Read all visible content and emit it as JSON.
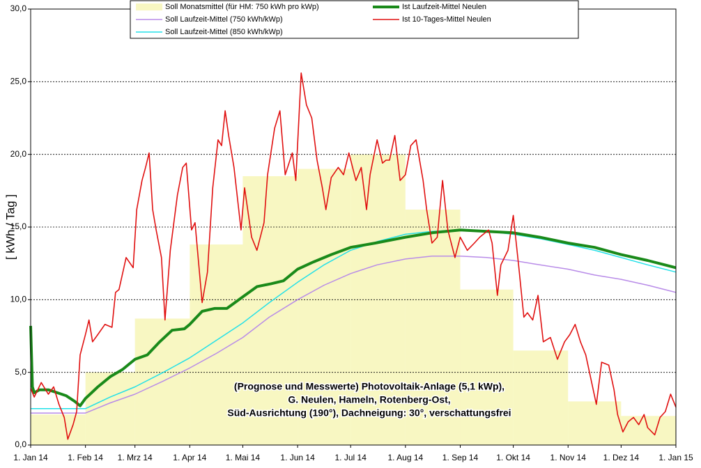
{
  "chart_data": {
    "type": "line",
    "y_label": "[ kWh / Tag ]",
    "annotations": [
      "(Prognose und Messwerte)  Photovoltaik-Anlage (5,1 kWp),",
      "G. Neulen, Hameln, Rotenberg-Ost,",
      "Süd-Ausrichtung (190°), Dachneigung: 30°, verschattungsfrei"
    ],
    "xlim": [
      0,
      365
    ],
    "xticks": [
      {
        "value": 0,
        "label": "1. Jan 14"
      },
      {
        "value": 31,
        "label": "1. Feb 14"
      },
      {
        "value": 59,
        "label": "1. Mrz 14"
      },
      {
        "value": 90,
        "label": "1. Apr 14"
      },
      {
        "value": 120,
        "label": "1. Mai 14"
      },
      {
        "value": 151,
        "label": "1. Jun 14"
      },
      {
        "value": 181,
        "label": "1. Jul 14"
      },
      {
        "value": 212,
        "label": "1. Aug 14"
      },
      {
        "value": 243,
        "label": "1. Sep 14"
      },
      {
        "value": 273,
        "label": "1. Okt 14"
      },
      {
        "value": 304,
        "label": "1. Nov 14"
      },
      {
        "value": 334,
        "label": "1. Dez 14"
      },
      {
        "value": 365,
        "label": "1. Jan 15"
      }
    ],
    "ylim": [
      0,
      30
    ],
    "yticks": [
      {
        "value": 0,
        "label": "0,0"
      },
      {
        "value": 5,
        "label": "5,0"
      },
      {
        "value": 10,
        "label": "10,0"
      },
      {
        "value": 15,
        "label": "15,0"
      },
      {
        "value": 20,
        "label": "20,0"
      },
      {
        "value": 25,
        "label": "25,0"
      },
      {
        "value": 30,
        "label": "30,0"
      }
    ],
    "grid": true,
    "series": [
      {
        "name": "Soll Monatsmittel (für HM: 750 kWh pro kWp)",
        "type": "bar",
        "color": "#f4f29a",
        "bins": [
          0,
          31,
          59,
          90,
          120,
          151,
          181,
          212,
          243,
          273,
          304,
          334,
          365
        ],
        "values": [
          2.1,
          5.0,
          8.7,
          13.8,
          18.5,
          19.0,
          20.0,
          16.2,
          10.7,
          6.5,
          3.0,
          2.0
        ]
      },
      {
        "name": "Soll Laufzeit-Mittel (750 kWh/kWp)",
        "color": "#b88be8",
        "x": [
          0,
          31,
          45,
          59,
          75,
          90,
          105,
          120,
          135,
          151,
          166,
          181,
          196,
          212,
          227,
          243,
          258,
          273,
          288,
          304,
          319,
          334,
          349,
          365
        ],
        "values": [
          2.2,
          2.2,
          2.9,
          3.5,
          4.4,
          5.3,
          6.3,
          7.4,
          8.8,
          10.0,
          11.0,
          11.8,
          12.4,
          12.8,
          13.0,
          13.0,
          12.9,
          12.7,
          12.4,
          12.1,
          11.7,
          11.4,
          11.0,
          10.5
        ]
      },
      {
        "name": "Soll Laufzeit-Mittel (850 kWh/kWp)",
        "color": "#22e0e8",
        "x": [
          0,
          31,
          45,
          59,
          75,
          90,
          105,
          120,
          135,
          151,
          166,
          181,
          196,
          212,
          227,
          243,
          258,
          273,
          288,
          304,
          319,
          334,
          349,
          365
        ],
        "values": [
          2.5,
          2.5,
          3.3,
          4.0,
          5.0,
          6.0,
          7.2,
          8.4,
          9.8,
          11.2,
          12.4,
          13.4,
          14.0,
          14.5,
          14.7,
          14.8,
          14.7,
          14.5,
          14.2,
          13.8,
          13.4,
          12.9,
          12.4,
          11.9
        ]
      },
      {
        "name": "Ist Laufzeit-Mittel Neulen",
        "color": "#1a8a1a",
        "x": [
          0,
          1,
          2,
          5,
          10,
          15,
          20,
          25,
          28,
          31,
          38,
          45,
          52,
          59,
          66,
          73,
          80,
          87,
          90,
          97,
          104,
          111,
          120,
          128,
          136,
          143,
          151,
          160,
          170,
          181,
          195,
          212,
          227,
          243,
          258,
          273,
          288,
          304,
          319,
          334,
          349,
          365
        ],
        "values": [
          8.2,
          4.0,
          3.6,
          3.8,
          3.8,
          3.6,
          3.4,
          3.0,
          2.7,
          3.2,
          4.0,
          4.7,
          5.2,
          5.9,
          6.2,
          7.1,
          7.9,
          8.0,
          8.3,
          9.2,
          9.4,
          9.4,
          10.2,
          10.9,
          11.1,
          11.3,
          12.1,
          12.6,
          13.1,
          13.6,
          13.9,
          14.3,
          14.6,
          14.8,
          14.7,
          14.6,
          14.3,
          13.9,
          13.6,
          13.1,
          12.7,
          12.2
        ]
      },
      {
        "name": "Ist 10-Tages-Mittel Neulen",
        "color": "#e01010",
        "x": [
          0,
          2,
          6,
          10,
          13,
          16,
          19,
          21,
          24,
          26,
          28,
          31,
          33,
          35,
          38,
          42,
          46,
          48,
          50,
          54,
          58,
          60,
          63,
          65,
          67,
          69,
          71,
          74,
          76,
          79,
          83,
          86,
          88,
          91,
          93,
          97,
          100,
          103,
          106,
          108,
          110,
          112,
          115,
          119,
          121,
          125,
          128,
          132,
          134,
          138,
          141,
          144,
          148,
          150,
          153,
          156,
          159,
          162,
          165,
          167,
          170,
          174,
          177,
          180,
          184,
          187,
          190,
          192,
          196,
          199,
          201,
          203,
          206,
          209,
          212,
          215,
          218,
          222,
          224,
          227,
          230,
          233,
          236,
          240,
          243,
          247,
          251,
          254,
          259,
          261,
          264,
          266,
          270,
          273,
          276,
          279,
          281,
          284,
          287,
          290,
          294,
          298,
          302,
          305,
          308,
          311,
          314,
          317,
          320,
          323,
          327,
          330,
          332,
          335,
          338,
          341,
          344,
          347,
          349,
          353,
          356,
          359,
          362,
          365
        ],
        "values": [
          3.9,
          3.3,
          4.3,
          3.5,
          4.0,
          2.8,
          1.9,
          0.4,
          1.4,
          2.3,
          6.2,
          7.6,
          8.6,
          7.1,
          7.6,
          8.3,
          8.1,
          10.5,
          10.7,
          12.9,
          12.2,
          16.2,
          18.2,
          19.1,
          20.1,
          16.2,
          14.8,
          12.9,
          8.6,
          13.4,
          17.2,
          19.1,
          19.4,
          14.8,
          15.3,
          9.8,
          11.9,
          17.7,
          21.0,
          20.6,
          23.0,
          21.3,
          19.1,
          14.8,
          17.7,
          14.3,
          13.4,
          15.3,
          18.6,
          21.8,
          23.0,
          18.6,
          20.1,
          18.2,
          25.6,
          23.4,
          22.5,
          19.6,
          17.7,
          16.2,
          18.4,
          19.1,
          18.6,
          20.1,
          18.2,
          19.1,
          16.2,
          18.6,
          21.0,
          19.4,
          19.6,
          19.6,
          21.3,
          18.2,
          18.6,
          20.6,
          21.0,
          18.2,
          16.2,
          13.9,
          14.3,
          18.2,
          14.8,
          12.9,
          14.3,
          13.4,
          13.9,
          14.3,
          14.8,
          13.9,
          10.3,
          12.4,
          13.4,
          15.8,
          12.4,
          8.8,
          9.1,
          8.6,
          10.3,
          7.1,
          7.4,
          5.9,
          7.1,
          7.6,
          8.3,
          7.1,
          6.2,
          4.5,
          2.8,
          5.7,
          5.5,
          3.8,
          2.1,
          0.9,
          1.6,
          1.9,
          1.4,
          2.1,
          1.2,
          0.7,
          1.9,
          2.3,
          3.5,
          2.6
        ]
      }
    ]
  }
}
